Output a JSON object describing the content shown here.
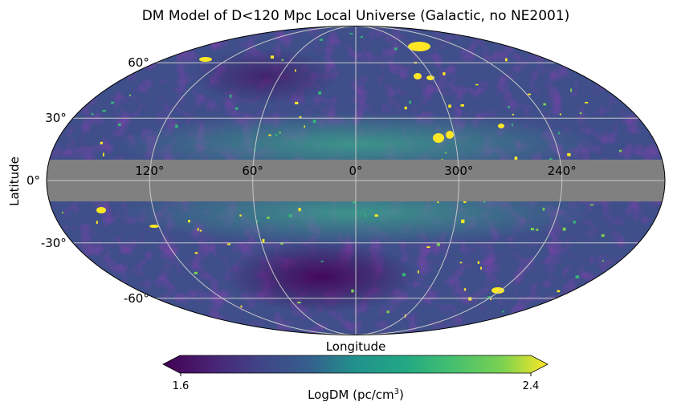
{
  "chart_data": {
    "type": "heatmap",
    "projection": "mollweide",
    "title": "DM Model of D<120 Mpc Local Universe (Galactic, no NE2001)",
    "xlabel": "Longitude",
    "ylabel": "Latitude",
    "x_tick_labels": [
      "120°",
      "60°",
      "0°",
      "300°",
      "240°"
    ],
    "x_tick_values": [
      120,
      60,
      0,
      300,
      240
    ],
    "y_tick_labels": [
      "60°",
      "30°",
      "0°",
      "-30°",
      "-60°"
    ],
    "y_tick_values": [
      60,
      30,
      0,
      -30,
      -60
    ],
    "grid": true,
    "masked_band_latitude": [
      -10,
      10
    ],
    "masked_color": "#808080",
    "colormap": "viridis",
    "colorbar": {
      "label": "LogDM (pc/cm",
      "label_sup": "3",
      "label_end": ")",
      "range": [
        1.6,
        2.4
      ],
      "tick_labels": [
        "1.6",
        "2.4"
      ],
      "extend": "both",
      "placement": "bottom"
    }
  }
}
